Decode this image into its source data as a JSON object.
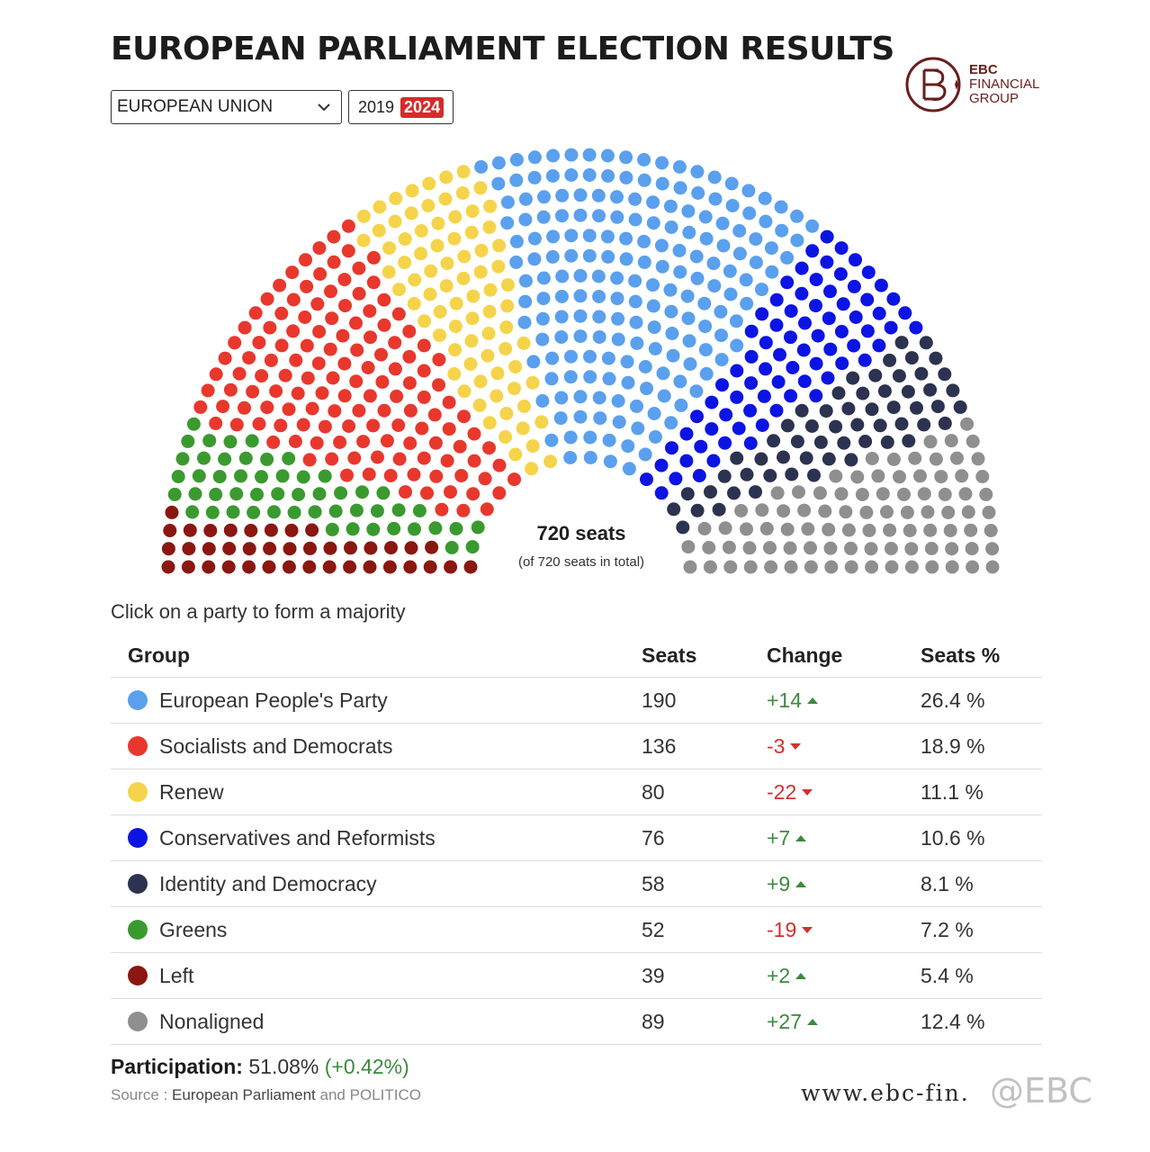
{
  "title": "EUROPEAN PARLIAMENT ELECTION RESULTS",
  "region_select": {
    "value": "EUROPEAN UNION"
  },
  "years": [
    {
      "label": "2019",
      "active": false
    },
    {
      "label": "2024",
      "active": true
    }
  ],
  "logo": {
    "line1": "EBC",
    "line2": "FINANCIAL",
    "line3": "GROUP"
  },
  "seats_total": "720 seats",
  "seats_sub": "(of 720 seats in total)",
  "hint": "Click on a party to form a majority",
  "table": {
    "headers": [
      "Group",
      "Seats",
      "Change",
      "Seats %"
    ],
    "rows": [
      {
        "group": "European People's Party",
        "seats": "190",
        "change": "+14",
        "dir": "up",
        "pct": "26.4 %",
        "color": "#5aa0ee"
      },
      {
        "group": "Socialists and Democrats",
        "seats": "136",
        "change": "-3",
        "dir": "down",
        "pct": "18.9 %",
        "color": "#e8382d"
      },
      {
        "group": "Renew",
        "seats": "80",
        "change": "-22",
        "dir": "down",
        "pct": "11.1 %",
        "color": "#f5d44b"
      },
      {
        "group": "Conservatives and Reformists",
        "seats": "76",
        "change": "+7",
        "dir": "up",
        "pct": "10.6 %",
        "color": "#0c14e3"
      },
      {
        "group": "Identity and Democracy",
        "seats": "58",
        "change": "+9",
        "dir": "up",
        "pct": "8.1 %",
        "color": "#2c3350"
      },
      {
        "group": "Greens",
        "seats": "52",
        "change": "-19",
        "dir": "down",
        "pct": "7.2 %",
        "color": "#3a9a2f"
      },
      {
        "group": "Left",
        "seats": "39",
        "change": "+2",
        "dir": "up",
        "pct": "5.4 %",
        "color": "#8a1710"
      },
      {
        "group": "Nonaligned",
        "seats": "89",
        "change": "+27",
        "dir": "up",
        "pct": "12.4 %",
        "color": "#8f8f8f"
      }
    ]
  },
  "participation": {
    "label": "Participation:",
    "value": "51.08%",
    "change": "(+0.42%)"
  },
  "source": {
    "prefix": "Source :",
    "org1": "European Parliament",
    "and": "and",
    "org2": "POLITICO"
  },
  "website": "www.ebc-fin.",
  "watermark": "@EBC",
  "chart_data": {
    "type": "parliament",
    "total": 720,
    "order": "left-to-right",
    "series": [
      {
        "name": "Left",
        "value": 39,
        "color": "#8a1710"
      },
      {
        "name": "Greens",
        "value": 52,
        "color": "#3a9a2f"
      },
      {
        "name": "Socialists and Democrats",
        "value": 136,
        "color": "#e8382d"
      },
      {
        "name": "Renew",
        "value": 80,
        "color": "#f5d44b"
      },
      {
        "name": "European People's Party",
        "value": 190,
        "color": "#5aa0ee"
      },
      {
        "name": "Conservatives and Reformists",
        "value": 76,
        "color": "#0c14e3"
      },
      {
        "name": "Identity and Democracy",
        "value": 58,
        "color": "#2c3350"
      },
      {
        "name": "Nonaligned",
        "value": 89,
        "color": "#8f8f8f"
      }
    ]
  }
}
